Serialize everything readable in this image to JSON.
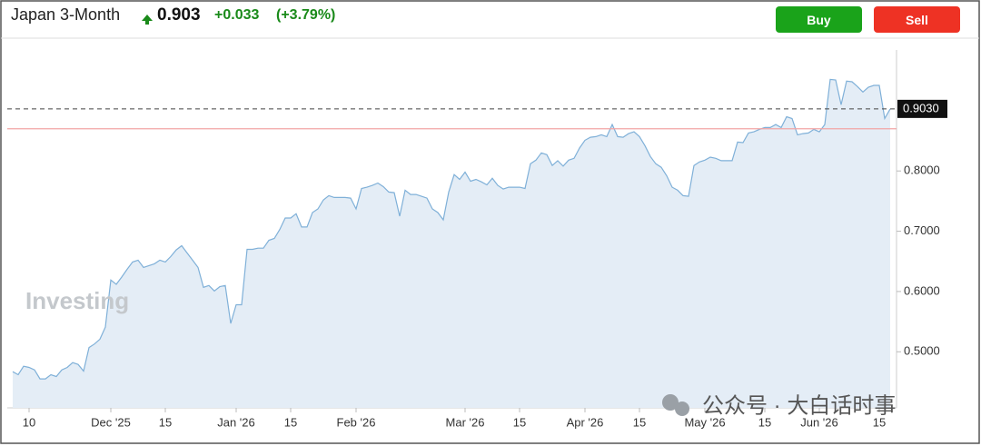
{
  "chart_data": {
    "type": "area",
    "title": "Japan 3-Month",
    "price": "0.903",
    "change": "+0.033",
    "change_pct": "(+3.79%)",
    "buttons": [
      "Buy",
      "Sell"
    ],
    "watermarks": [
      "Investing",
      "公众号 · 大白话时事"
    ],
    "color": "#7fb0d8",
    "fill_color": "#e4edf6",
    "xlim": [
      0,
      160
    ],
    "xticks": [
      {
        "value": 3,
        "label": "10"
      },
      {
        "value": 18,
        "label": "Dec '25"
      },
      {
        "value": 28,
        "label": "15"
      },
      {
        "value": 41,
        "label": "Jan '26"
      },
      {
        "value": 51,
        "label": "15"
      },
      {
        "value": 63,
        "label": "Feb '26"
      },
      {
        "value": 83,
        "label": "Mar '26"
      },
      {
        "value": 93,
        "label": "15"
      },
      {
        "value": 105,
        "label": "Apr '26"
      },
      {
        "value": 115,
        "label": "15"
      },
      {
        "value": 127,
        "label": "May '26"
      },
      {
        "value": 138,
        "label": "15"
      },
      {
        "value": 148,
        "label": "Jun '26"
      },
      {
        "value": 159,
        "label": "15"
      }
    ],
    "ylim": [
      0.407,
      1.0
    ],
    "yticks": [
      {
        "value": 0.5,
        "label": "0.5000"
      },
      {
        "value": 0.6,
        "label": "0.6000"
      },
      {
        "value": 0.7,
        "label": "0.7000"
      },
      {
        "value": 0.8,
        "label": "0.8000"
      }
    ],
    "last_price": {
      "value": 0.903,
      "label": "0.9030"
    },
    "prev_close_line": 0.87,
    "values": [
      0.467,
      0.462,
      0.476,
      0.474,
      0.47,
      0.455,
      0.455,
      0.462,
      0.459,
      0.47,
      0.474,
      0.482,
      0.479,
      0.468,
      0.507,
      0.513,
      0.521,
      0.541,
      0.619,
      0.612,
      0.624,
      0.637,
      0.649,
      0.652,
      0.64,
      0.643,
      0.646,
      0.652,
      0.649,
      0.658,
      0.669,
      0.676,
      0.664,
      0.652,
      0.64,
      0.607,
      0.61,
      0.601,
      0.608,
      0.61,
      0.547,
      0.578,
      0.578,
      0.67,
      0.67,
      0.672,
      0.672,
      0.685,
      0.688,
      0.703,
      0.722,
      0.722,
      0.729,
      0.707,
      0.707,
      0.731,
      0.737,
      0.752,
      0.759,
      0.756,
      0.756,
      0.756,
      0.755,
      0.737,
      0.771,
      0.773,
      0.776,
      0.78,
      0.774,
      0.765,
      0.764,
      0.725,
      0.768,
      0.761,
      0.761,
      0.758,
      0.755,
      0.737,
      0.731,
      0.719,
      0.765,
      0.794,
      0.786,
      0.798,
      0.783,
      0.786,
      0.782,
      0.777,
      0.788,
      0.776,
      0.77,
      0.773,
      0.773,
      0.773,
      0.771,
      0.812,
      0.818,
      0.83,
      0.827,
      0.809,
      0.817,
      0.808,
      0.818,
      0.821,
      0.838,
      0.851,
      0.856,
      0.857,
      0.86,
      0.857,
      0.877,
      0.857,
      0.856,
      0.862,
      0.865,
      0.857,
      0.842,
      0.824,
      0.812,
      0.806,
      0.792,
      0.773,
      0.768,
      0.759,
      0.758,
      0.809,
      0.815,
      0.818,
      0.823,
      0.821,
      0.817,
      0.817,
      0.817,
      0.848,
      0.847,
      0.863,
      0.865,
      0.869,
      0.872,
      0.872,
      0.877,
      0.872,
      0.89,
      0.887,
      0.86,
      0.862,
      0.863,
      0.869,
      0.865,
      0.877,
      0.952,
      0.951,
      0.91,
      0.949,
      0.948,
      0.94,
      0.931,
      0.939,
      0.942,
      0.942,
      0.887,
      0.903
    ]
  }
}
